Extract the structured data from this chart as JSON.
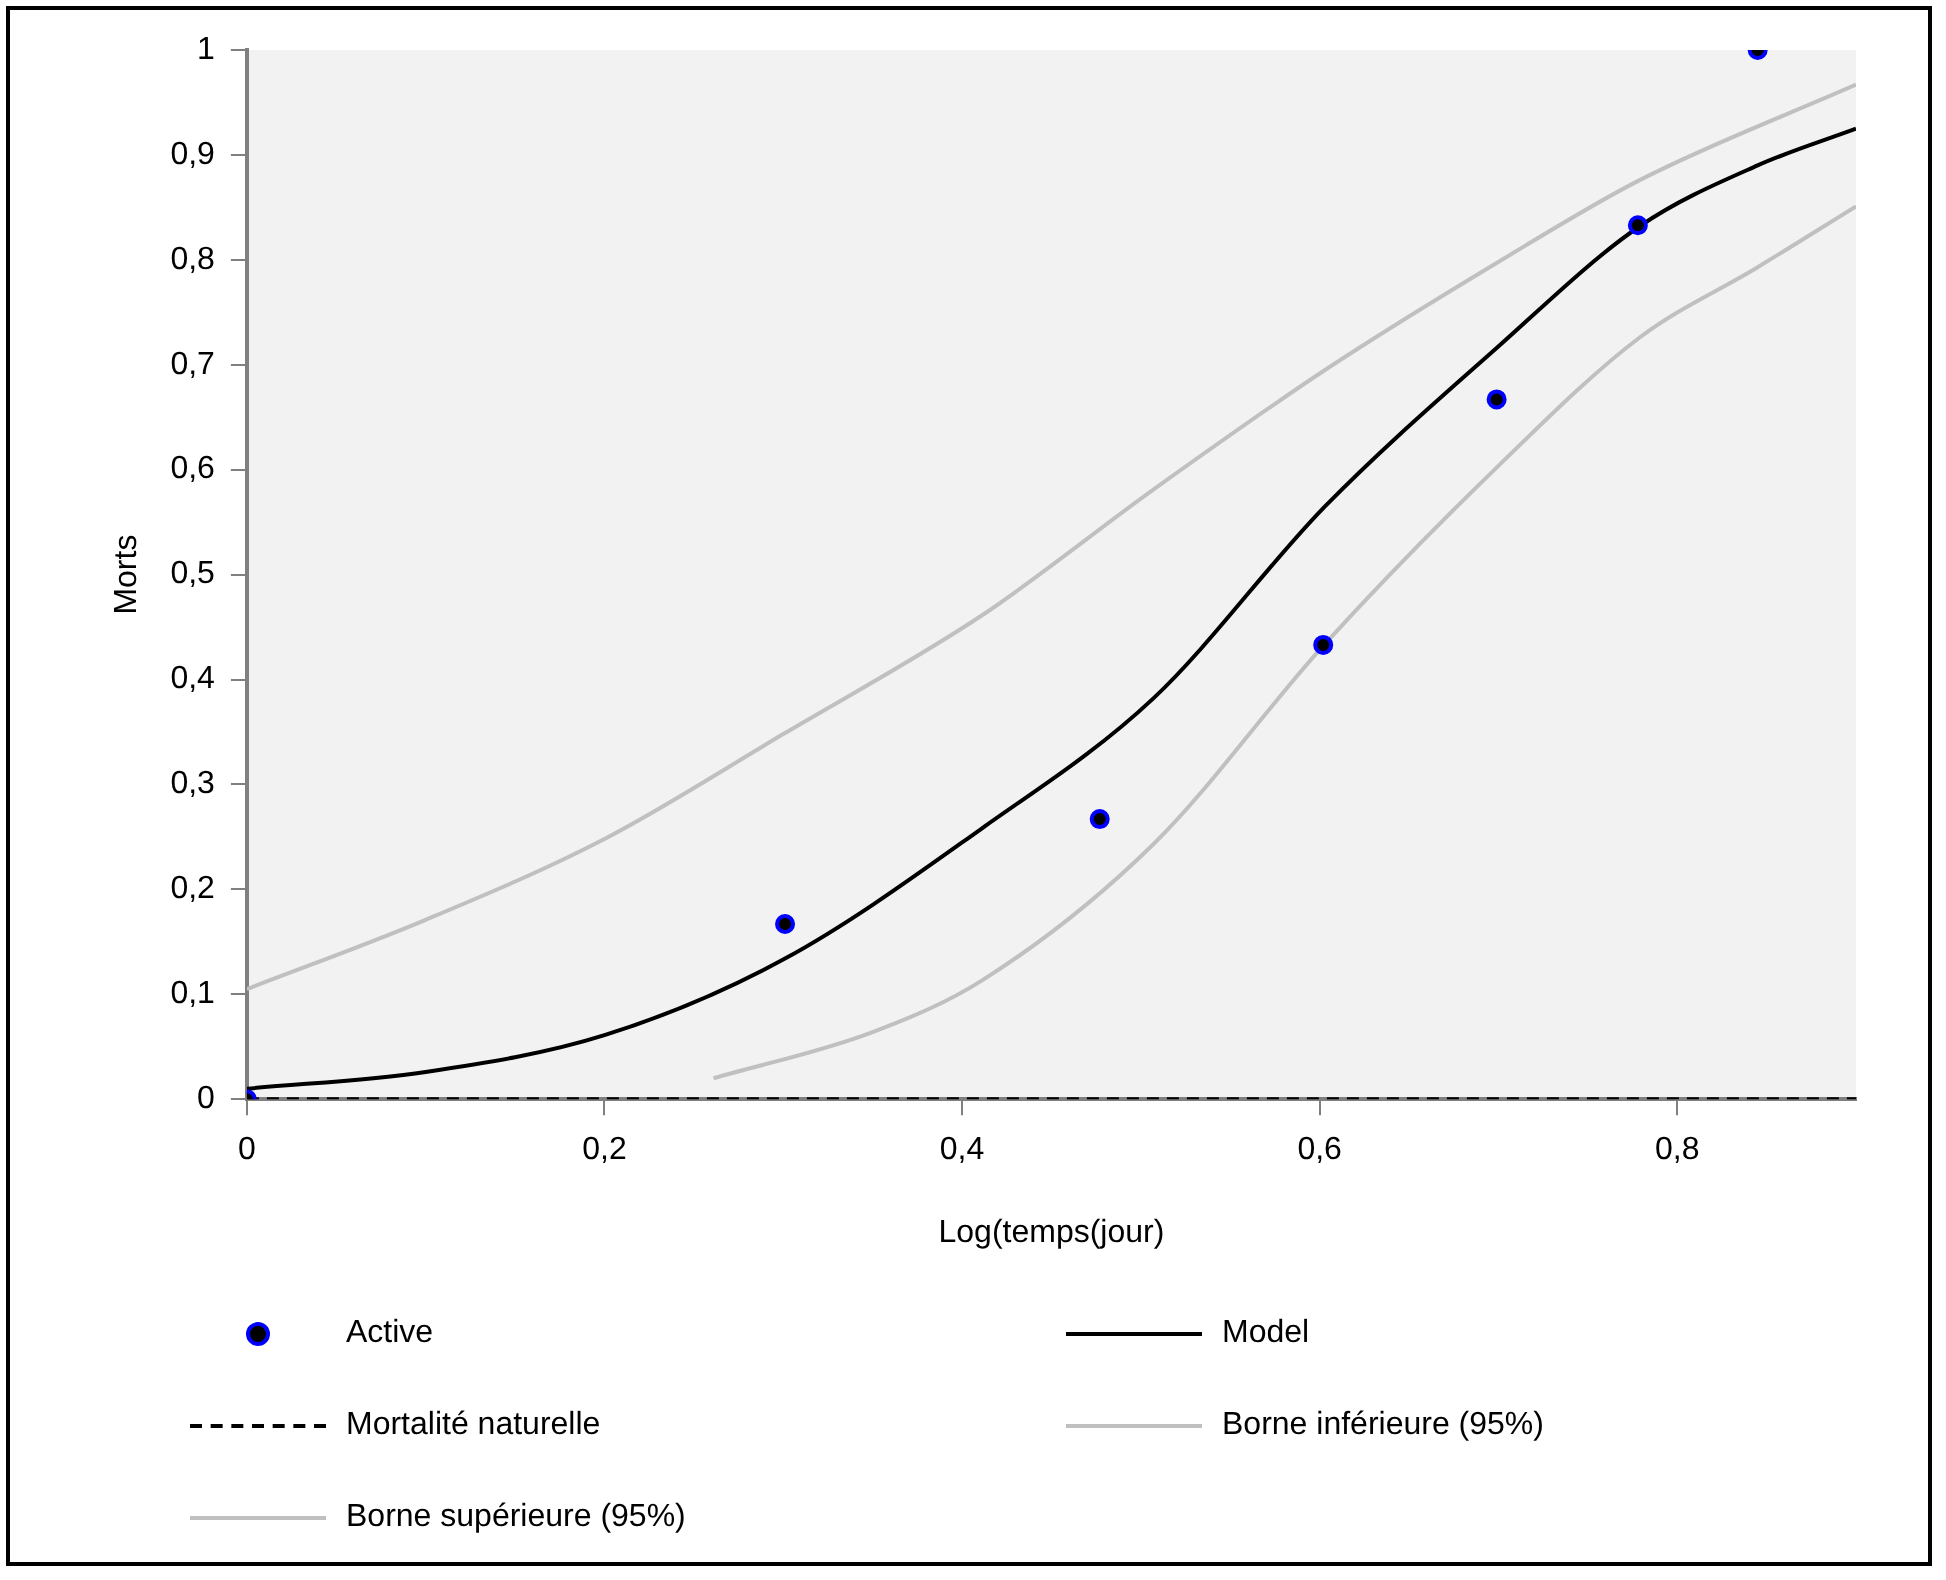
{
  "chart_data": {
    "type": "line",
    "xlabel": "Log(temps(jour)",
    "ylabel": "Morts",
    "xlim": [
      0,
      0.9
    ],
    "ylim": [
      0,
      1
    ],
    "xticks": [
      0,
      {
        "value": 0.2,
        "label": "0,2"
      },
      {
        "value": 0.4,
        "label": "0,4"
      },
      {
        "value": 0.6,
        "label": "0,6"
      },
      {
        "value": 0.8,
        "label": "0,8"
      }
    ],
    "yticks": [
      0,
      {
        "value": 0.1,
        "label": "0,1"
      },
      {
        "value": 0.2,
        "label": "0,2"
      },
      {
        "value": 0.3,
        "label": "0,3"
      },
      {
        "value": 0.4,
        "label": "0,4"
      },
      {
        "value": 0.5,
        "label": "0,5"
      },
      {
        "value": 0.6,
        "label": "0,6"
      },
      {
        "value": 0.7,
        "label": "0,7"
      },
      {
        "value": 0.8,
        "label": "0,8"
      },
      {
        "value": 0.9,
        "label": "0,9"
      },
      1
    ],
    "grid": false,
    "legend": "bottom",
    "series": [
      {
        "name": "Active",
        "type": "scatter",
        "marker": "circle",
        "color": "#0000ff",
        "x": [
          0,
          0.301,
          0.477,
          0.602,
          0.699,
          0.778,
          0.845
        ],
        "values": [
          0,
          0.167,
          0.267,
          0.433,
          0.667,
          0.833,
          1
        ]
      },
      {
        "name": "Model",
        "type": "line",
        "color": "#000000",
        "line_style": "solid",
        "x": [
          0,
          0.1,
          0.2,
          0.301,
          0.411,
          0.507,
          0.603,
          0.699,
          0.779,
          0.845,
          0.9
        ],
        "values": [
          0.01,
          0.026,
          0.061,
          0.134,
          0.258,
          0.382,
          0.565,
          0.716,
          0.832,
          0.89,
          0.925
        ]
      },
      {
        "name": "Mortalité naturelle",
        "type": "line",
        "color": "#000000",
        "line_style": "dashed",
        "x": [
          0,
          0.9
        ],
        "values": [
          0,
          0
        ]
      },
      {
        "name": "Borne inférieure (95%)",
        "type": "line",
        "color": "#c0c0c0",
        "line_style": "solid",
        "x": [
          0.261,
          0.35,
          0.411,
          0.507,
          0.603,
          0.699,
          0.779,
          0.845,
          0.9
        ],
        "values": [
          0.02,
          0.064,
          0.113,
          0.243,
          0.434,
          0.602,
          0.726,
          0.793,
          0.851
        ]
      },
      {
        "name": "Borne supérieure (95%)",
        "type": "line",
        "color": "#c0c0c0",
        "line_style": "solid",
        "x": [
          0,
          0.1,
          0.2,
          0.3,
          0.411,
          0.507,
          0.603,
          0.699,
          0.779,
          0.9
        ],
        "values": [
          0.105,
          0.171,
          0.248,
          0.348,
          0.461,
          0.581,
          0.695,
          0.797,
          0.876,
          0.967
        ]
      }
    ]
  }
}
